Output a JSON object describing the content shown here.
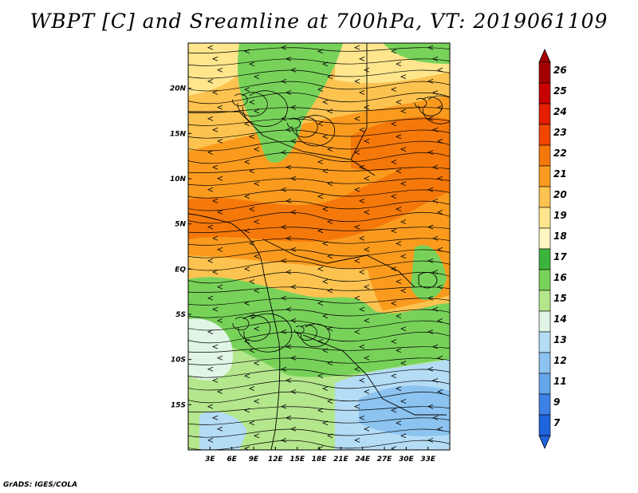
{
  "title": "WBPT [C] and Sreamline at 700hPa, VT: 2019061109",
  "credit": "GrADS: IGES/COLA",
  "map": {
    "lon_range": [
      0,
      36
    ],
    "lat_range": [
      -20,
      25
    ],
    "lat_ticks": [
      {
        "value": 20,
        "label": "20N"
      },
      {
        "value": 15,
        "label": "15N"
      },
      {
        "value": 10,
        "label": "10N"
      },
      {
        "value": 5,
        "label": "5N"
      },
      {
        "value": 0,
        "label": "EQ"
      },
      {
        "value": -5,
        "label": "5S"
      },
      {
        "value": -10,
        "label": "10S"
      },
      {
        "value": -15,
        "label": "15S"
      }
    ],
    "lon_ticks": [
      {
        "value": 3,
        "label": "3E"
      },
      {
        "value": 6,
        "label": "6E"
      },
      {
        "value": 9,
        "label": "9E"
      },
      {
        "value": 12,
        "label": "12E"
      },
      {
        "value": 15,
        "label": "15E"
      },
      {
        "value": 18,
        "label": "18E"
      },
      {
        "value": 21,
        "label": "21E"
      },
      {
        "value": 24,
        "label": "24E"
      },
      {
        "value": 27,
        "label": "27E"
      },
      {
        "value": 30,
        "label": "30E"
      },
      {
        "value": 33,
        "label": "33E"
      }
    ]
  },
  "colorbar": {
    "levels": [
      {
        "label": "26",
        "color": "#a50000"
      },
      {
        "label": "25",
        "color": "#c80000"
      },
      {
        "label": "24",
        "color": "#e61e00"
      },
      {
        "label": "23",
        "color": "#f04600"
      },
      {
        "label": "22",
        "color": "#f5780a"
      },
      {
        "label": "21",
        "color": "#fa9b1e"
      },
      {
        "label": "20",
        "color": "#fcc350"
      },
      {
        "label": "19",
        "color": "#ffe68c"
      },
      {
        "label": "18",
        "color": "#fff5c0"
      },
      {
        "label": "17",
        "color": "#3cb43c"
      },
      {
        "label": "16",
        "color": "#78d25a"
      },
      {
        "label": "15",
        "color": "#b4e68c"
      },
      {
        "label": "14",
        "color": "#e1f5e6"
      },
      {
        "label": "13",
        "color": "#b4dcf5"
      },
      {
        "label": "12",
        "color": "#8cc3f0"
      },
      {
        "label": "11",
        "color": "#64a5eb"
      },
      {
        "label": "9",
        "color": "#3c82e6"
      },
      {
        "label": "7",
        "color": "#1e64dc"
      }
    ],
    "bottom_color": "#1e64dc"
  },
  "field_colors": {
    "green": "#78d25a",
    "dark_green": "#3cb43c",
    "light_green": "#b4e68c",
    "pale_yellow": "#ffe68c",
    "light_orange": "#fcc350",
    "orange": "#fa9b1e",
    "dark_orange": "#f5780a",
    "light_blue": "#b4dcf5",
    "blue": "#8cc3f0",
    "pale_cyan": "#e1f5e6"
  }
}
